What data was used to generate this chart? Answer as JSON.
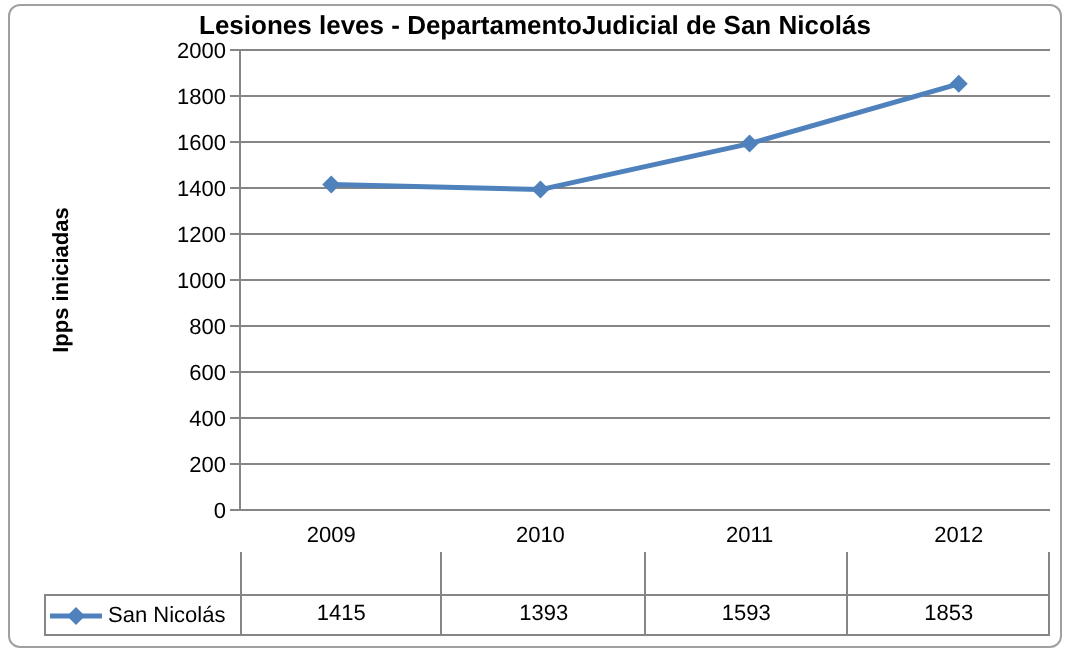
{
  "chart_data": {
    "type": "line",
    "title": "Lesiones leves - DepartamentoJudicial de San Nicolás",
    "ylabel": "Ipps iniciadas",
    "categories": [
      "2009",
      "2010",
      "2011",
      "2012"
    ],
    "series": [
      {
        "name": "San Nicolás",
        "color": "#4f81bd",
        "values": [
          1415,
          1393,
          1593,
          1853
        ]
      }
    ],
    "ylim": [
      0,
      2000
    ],
    "yticks": [
      0,
      200,
      400,
      600,
      800,
      1000,
      1200,
      1400,
      1600,
      1800,
      2000
    ],
    "grid": "y",
    "legend": "bottom",
    "marker": "diamond",
    "data_labels": true
  }
}
